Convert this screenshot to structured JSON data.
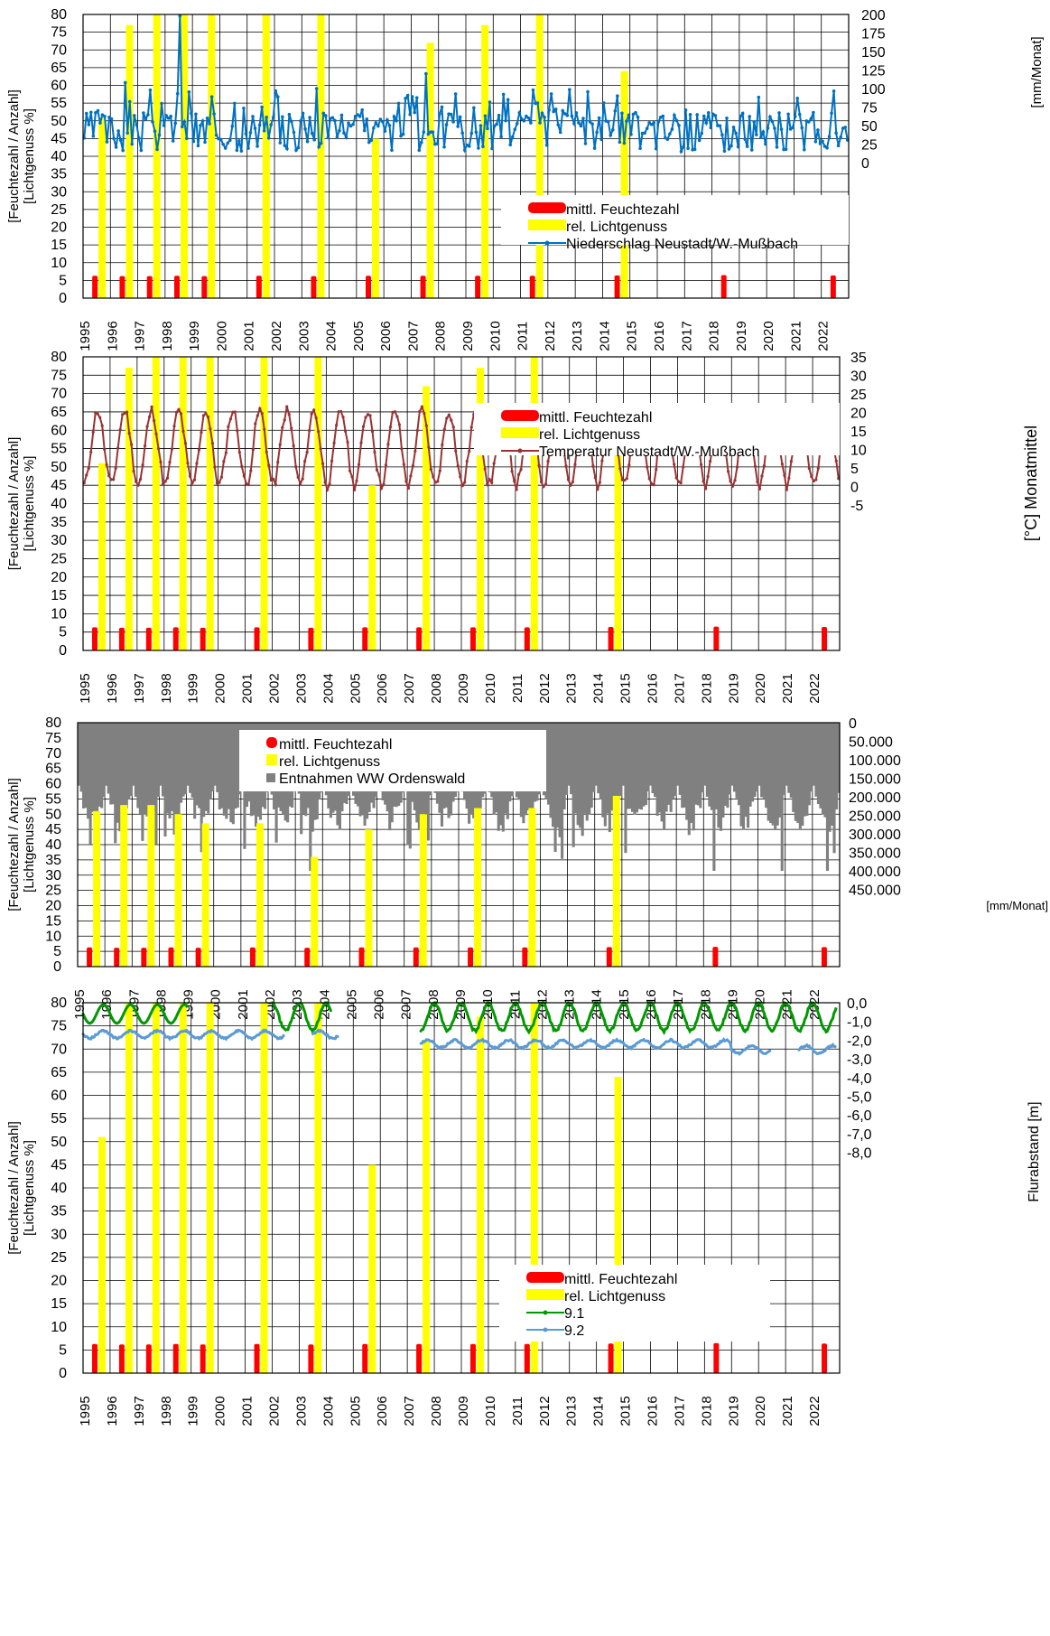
{
  "colors": {
    "feuchte": "#ff0000",
    "licht": "#ffff00",
    "niederschlag": "#0070c0",
    "temperatur": "#993333",
    "entnahmen": "#808080",
    "well_91": "#009900",
    "well_92": "#5b9bd5",
    "grid": "#000000"
  },
  "chart_data": [
    {
      "type": "bar+line",
      "ylabel": "[Feuchtezahl / Anzahl] [Lichtgenuss %]",
      "y2label": "[mm/Monat]",
      "ylim": [
        0,
        80
      ],
      "y2lim": [
        0,
        200
      ],
      "y2ticks": [
        "200",
        "175",
        "150",
        "125",
        "100",
        "75",
        "50",
        "25",
        "0"
      ],
      "xlim": [
        1995,
        2023
      ],
      "xticks": [
        "1995",
        "1996",
        "1997",
        "1998",
        "1999",
        "2000",
        "2001",
        "2002",
        "2003",
        "2004",
        "2005",
        "2006",
        "2007",
        "2008",
        "2009",
        "2010",
        "2011",
        "2012",
        "2013",
        "2014",
        "2015",
        "2016",
        "2017",
        "2018",
        "2019",
        "2020",
        "2021",
        "2022"
      ],
      "legend": [
        "mittl. Feuchtezahl",
        "rel. Lichtgenuss",
        "Niederschlag Neustadt/W.-Mußbach"
      ],
      "survey_years": [
        1995.5,
        1996.5,
        1997.5,
        1998.5,
        1999.5,
        2001.5,
        2003.5,
        2005.5,
        2007.5,
        2009.5,
        2011.5,
        2014.6,
        2018.5,
        2022.5
      ],
      "feuchtezahl": [
        6.3,
        6.2,
        6.2,
        6.3,
        6.2,
        6.3,
        6.2,
        6.3,
        6.3,
        6.3,
        6.3,
        6.4,
        6.5,
        6.4
      ],
      "lichtgenuss": [
        51,
        77,
        80,
        80,
        80,
        80,
        80,
        45,
        72,
        77,
        80,
        64,
        null,
        null
      ],
      "line_series": {
        "name": "Niederschlag Neustadt/W.-Mußbach",
        "unit": "mm/Monat",
        "description": "monthly precipitation 1995-2022",
        "yearly_peaks": [
          70,
          108,
          55,
          198,
          60,
          80,
          75,
          65,
          100,
          40,
          30,
          80,
          120,
          55,
          50,
          85,
          80,
          70,
          55,
          90,
          40,
          45,
          30,
          60,
          55,
          45,
          55,
          40
        ]
      }
    },
    {
      "type": "bar+line",
      "ylabel": "[Feuchtezahl / Anzahl] [Lichtgenuss %]",
      "y2label": "[°C] Monatmittel",
      "ylim": [
        0,
        80
      ],
      "y2lim": [
        -5,
        35
      ],
      "y2ticks": [
        "35",
        "30",
        "25",
        "20",
        "15",
        "10",
        "5",
        "0",
        "-5"
      ],
      "xlim": [
        1995,
        2023
      ],
      "xticks": [
        "1995",
        "1996",
        "1997",
        "1998",
        "1999",
        "2000",
        "2001",
        "2002",
        "2003",
        "2004",
        "2005",
        "2006",
        "2007",
        "2008",
        "2009",
        "2010",
        "2011",
        "2012",
        "2013",
        "2014",
        "2015",
        "2016",
        "2017",
        "2018",
        "2019",
        "2020",
        "2021",
        "2022"
      ],
      "legend": [
        "mittl. Feuchtezahl",
        "rel. Lichtgenuss",
        "Temperatur Neustadt/W.-Mußbach"
      ],
      "survey_years": [
        1995.5,
        1996.5,
        1997.5,
        1998.5,
        1999.5,
        2001.5,
        2003.5,
        2005.5,
        2007.5,
        2009.5,
        2011.5,
        2014.6,
        2018.5,
        2022.5
      ],
      "feuchtezahl": [
        6.3,
        6.2,
        6.2,
        6.3,
        6.2,
        6.3,
        6.2,
        6.3,
        6.3,
        6.3,
        6.3,
        6.4,
        6.5,
        6.4
      ],
      "lichtgenuss": [
        51,
        77,
        80,
        80,
        80,
        80,
        80,
        45,
        72,
        77,
        80,
        64,
        null,
        null
      ],
      "line_series": {
        "name": "Temperatur Neustadt/W.-Mußbach",
        "unit": "°C",
        "description": "monthly mean temperature, seasonal cycle",
        "annual_max": 20.5,
        "annual_min": 0.5
      }
    },
    {
      "type": "bar+column",
      "ylabel": "[Feuchtezahl / Anzahl] [Lichtgenuss %]",
      "y2label": "[mm/Monat]",
      "ylim": [
        0,
        80
      ],
      "y2lim": [
        0,
        500000
      ],
      "y2_inverted": true,
      "y2ticks": [
        "0",
        "50.000",
        "100.000",
        "150.000",
        "200.000",
        "250.000",
        "300.000",
        "350.000",
        "400.000",
        "450.000"
      ],
      "xlim": [
        1995,
        2023
      ],
      "xticks": [
        "1995",
        "1996",
        "1997",
        "1998",
        "1999",
        "2000",
        "2001",
        "2002",
        "2003",
        "2004",
        "2005",
        "2006",
        "2007",
        "2008",
        "2009",
        "2010",
        "2011",
        "2012",
        "2013",
        "2014",
        "2015",
        "2016",
        "2017",
        "2018",
        "2019",
        "2020",
        "2021",
        "2022"
      ],
      "legend": [
        "mittl. Feuchtezahl",
        "rel. Lichtgenuss",
        "Entnahmen WW Ordenswald"
      ],
      "survey_years": [
        1995.5,
        1996.5,
        1997.5,
        1998.5,
        1999.5,
        2001.5,
        2003.5,
        2005.5,
        2007.5,
        2009.5,
        2011.5,
        2014.6,
        2018.5,
        2022.5
      ],
      "feuchtezahl": [
        6.3,
        6.2,
        6.2,
        6.3,
        6.2,
        6.3,
        6.2,
        6.3,
        6.3,
        6.3,
        6.3,
        6.4,
        6.5,
        6.4
      ],
      "lichtgenuss": [
        51,
        53,
        53,
        50,
        47,
        47,
        36,
        45,
        50,
        52,
        52,
        56,
        null,
        null
      ],
      "column_series": {
        "name": "Entnahmen WW Ordenswald",
        "description": "monthly abstraction, hanging columns from inverted top axis",
        "typical_range": [
          170000,
          300000
        ],
        "peak_values": [
          400000,
          410000,
          400000,
          420000
        ]
      }
    },
    {
      "type": "bar+line",
      "ylabel": "[Feuchtezahl / Anzahl] [Lichtgenuss %]",
      "y2label": "Flurabstand [m]",
      "ylim": [
        0,
        80
      ],
      "y2lim": [
        -9,
        0
      ],
      "y2ticks": [
        "0,0",
        "-1,0",
        "-2,0",
        "-3,0",
        "-4,0",
        "-5,0",
        "-6,0",
        "-7,0",
        "-8,0"
      ],
      "xlim": [
        1995,
        2023
      ],
      "xticks": [
        "1995",
        "1996",
        "1997",
        "1998",
        "1999",
        "2000",
        "2001",
        "2002",
        "2003",
        "2004",
        "2005",
        "2006",
        "2007",
        "2008",
        "2009",
        "2010",
        "2011",
        "2012",
        "2013",
        "2014",
        "2015",
        "2016",
        "2017",
        "2018",
        "2019",
        "2020",
        "2021",
        "2022"
      ],
      "legend": [
        "mittl. Feuchtezahl",
        "rel. Lichtgenuss",
        "9.1",
        "9.2"
      ],
      "survey_years": [
        1995.5,
        1996.5,
        1997.5,
        1998.5,
        1999.5,
        2001.5,
        2003.5,
        2005.5,
        2007.5,
        2009.5,
        2011.5,
        2014.6,
        2018.5,
        2022.5
      ],
      "feuchtezahl": [
        6.3,
        6.2,
        6.2,
        6.3,
        6.2,
        6.3,
        6.2,
        6.3,
        6.3,
        6.3,
        6.3,
        6.4,
        6.5,
        6.4
      ],
      "lichtgenuss": [
        51,
        80,
        80,
        80,
        80,
        80,
        80,
        45,
        72,
        77,
        80,
        64,
        null,
        null
      ],
      "line_series": [
        {
          "name": "9.1",
          "unit": "m",
          "range": [
            -1.5,
            0.0
          ],
          "segments": [
            [
              1995,
              1998.9
            ],
            [
              2002,
              2004.2
            ],
            [
              2007.5,
              2022.9
            ]
          ]
        },
        {
          "name": "9.2",
          "unit": "m",
          "range": [
            -2.8,
            -1.3
          ],
          "segments": [
            [
              1995,
              2002.5
            ],
            [
              2003.5,
              2004.5
            ],
            [
              2007.5,
              2020.5
            ],
            [
              2021.5,
              2022.9
            ]
          ]
        }
      ]
    }
  ]
}
